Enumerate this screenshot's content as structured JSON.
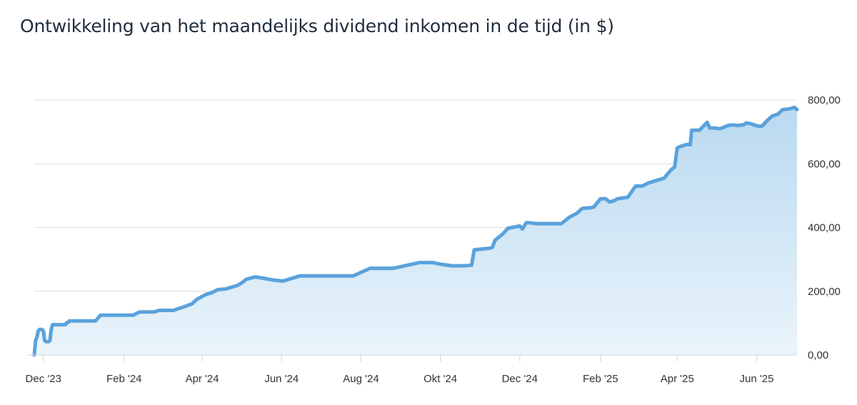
{
  "chart_data": {
    "type": "area",
    "title": "Ontwikkeling van het maandelijks dividend inkomen in de tijd (in $)",
    "xlabel": "",
    "ylabel": "",
    "x_tick_labels": [
      "Dec '23",
      "Feb '24",
      "Apr '24",
      "Jun '24",
      "Aug '24",
      "Okt '24",
      "Dec '24",
      "Feb '25",
      "Apr '25",
      "Jun '25"
    ],
    "y_tick_labels": [
      "0,00",
      "200,00",
      "400,00",
      "600,00",
      "800,00"
    ],
    "y_ticks": [
      0,
      200,
      400,
      600,
      800
    ],
    "ylim": [
      0,
      800
    ],
    "xlim": [
      "2023-11-24",
      "2025-07-02"
    ],
    "grid": true,
    "legend": "none",
    "colors": {
      "line": "#5aa2dc",
      "fill_top": "#b9d9f0",
      "fill_bottom": "#eaf4fb",
      "grid": "#dcdcdc",
      "axis": "#c9d6e3"
    },
    "series": [
      {
        "x": [
          "2023-11-24",
          "2023-11-25",
          "2023-11-26",
          "2023-11-27",
          "2023-11-28",
          "2023-11-30",
          "2023-12-01",
          "2023-12-02",
          "2023-12-03",
          "2023-12-05",
          "2023-12-06",
          "2023-12-07",
          "2023-12-08",
          "2023-12-10",
          "2023-12-11",
          "2023-12-13",
          "2023-12-18",
          "2023-12-19",
          "2023-12-20",
          "2023-12-21",
          "2023-12-23",
          "2023-12-28",
          "2024-01-05",
          "2024-01-10",
          "2024-01-14",
          "2024-01-21",
          "2024-01-28",
          "2024-02-04",
          "2024-02-08",
          "2024-02-13",
          "2024-02-17",
          "2024-02-24",
          "2024-02-28",
          "2024-03-05",
          "2024-03-10",
          "2024-03-17",
          "2024-03-24",
          "2024-03-28",
          "2024-04-04",
          "2024-04-08",
          "2024-04-13",
          "2024-04-19",
          "2024-04-24",
          "2024-04-28",
          "2024-05-02",
          "2024-05-05",
          "2024-05-12",
          "2024-05-19",
          "2024-05-26",
          "2024-06-02",
          "2024-06-15",
          "2024-07-01",
          "2024-07-14",
          "2024-07-21",
          "2024-07-26",
          "2024-08-08",
          "2024-08-21",
          "2024-08-26",
          "2024-09-15",
          "2024-09-25",
          "2024-10-01",
          "2024-10-10",
          "2024-10-20",
          "2024-10-25",
          "2024-10-27",
          "2024-11-08",
          "2024-11-10",
          "2024-11-12",
          "2024-11-18",
          "2024-11-22",
          "2024-11-25",
          "2024-12-01",
          "2024-12-03",
          "2024-12-06",
          "2024-12-08",
          "2024-12-14",
          "2024-12-22",
          "2025-01-02",
          "2025-01-08",
          "2025-01-14",
          "2025-01-18",
          "2025-01-25",
          "2025-01-27",
          "2025-02-01",
          "2025-02-05",
          "2025-02-08",
          "2025-02-12",
          "2025-02-14",
          "2025-02-22",
          "2025-02-28",
          "2025-03-05",
          "2025-03-10",
          "2025-03-14",
          "2025-03-22",
          "2025-03-27",
          "2025-03-30",
          "2025-04-01",
          "2025-04-04",
          "2025-04-08",
          "2025-04-11",
          "2025-04-12",
          "2025-04-18",
          "2025-04-24",
          "2025-04-26",
          "2025-04-30",
          "2025-05-04",
          "2025-05-10",
          "2025-05-14",
          "2025-05-17",
          "2025-05-22",
          "2025-05-24",
          "2025-05-28",
          "2025-06-02",
          "2025-06-05",
          "2025-06-09",
          "2025-06-13",
          "2025-06-17",
          "2025-06-21",
          "2025-06-26",
          "2025-06-30",
          "2025-07-02"
        ],
        "y": [
          0,
          45,
          55,
          75,
          80,
          80,
          75,
          45,
          42,
          42,
          45,
          80,
          95,
          95,
          95,
          95,
          95,
          102,
          102,
          107,
          107,
          107,
          107,
          107,
          125,
          125,
          125,
          125,
          125,
          135,
          135,
          135,
          140,
          140,
          140,
          150,
          160,
          175,
          190,
          195,
          205,
          207,
          213,
          218,
          228,
          238,
          245,
          240,
          235,
          232,
          248,
          248,
          248,
          248,
          248,
          272,
          272,
          272,
          290,
          290,
          285,
          280,
          280,
          282,
          330,
          335,
          338,
          360,
          380,
          398,
          400,
          405,
          395,
          415,
          415,
          412,
          412,
          412,
          432,
          445,
          460,
          462,
          465,
          490,
          490,
          480,
          485,
          490,
          495,
          530,
          530,
          540,
          545,
          555,
          580,
          590,
          650,
          655,
          660,
          660,
          705,
          705,
          730,
          712,
          712,
          710,
          720,
          722,
          720,
          722,
          728,
          725,
          718,
          718,
          735,
          750,
          755,
          770,
          772,
          777,
          770
        ]
      }
    ]
  }
}
